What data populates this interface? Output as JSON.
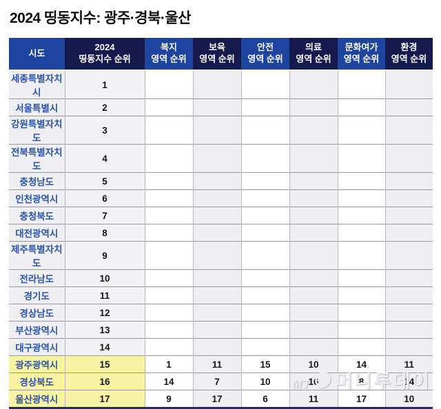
{
  "title": "2024 띵동지수: 광주·경북·울산",
  "colors": {
    "header_royal_blue": "#1d449e",
    "header_dark_navy": "#15194d",
    "region_label_text": "#2a55a8",
    "row_gray": "#efeef1",
    "highlight_yellow": "#f8f3a2",
    "bottom_border_navy": "#1c2a66"
  },
  "chart_data": {
    "type": "table",
    "title": "2024 띵동지수: 광주·경북·울산",
    "columns": [
      {
        "label": "시도",
        "style": "royal"
      },
      {
        "label": "2024\n띵동지수 순위",
        "style": "navy"
      },
      {
        "label": "복지\n영역 순위",
        "style": "royal"
      },
      {
        "label": "보육\n영역 순위",
        "style": "navy"
      },
      {
        "label": "안전\n영역 순위",
        "style": "royal"
      },
      {
        "label": "의료\n영역 순위",
        "style": "navy"
      },
      {
        "label": "문화여가\n영역 순위",
        "style": "royal"
      },
      {
        "label": "환경\n영역 순위",
        "style": "navy"
      }
    ],
    "rows": [
      {
        "cells": [
          "세종특별자치시",
          "1",
          "",
          "",
          "",
          "",
          "",
          ""
        ],
        "highlight": false
      },
      {
        "cells": [
          "서울특별시",
          "2",
          "",
          "",
          "",
          "",
          "",
          ""
        ],
        "highlight": false
      },
      {
        "cells": [
          "강원특별자치도",
          "3",
          "",
          "",
          "",
          "",
          "",
          ""
        ],
        "highlight": false
      },
      {
        "cells": [
          "전북특별자치도",
          "4",
          "",
          "",
          "",
          "",
          "",
          ""
        ],
        "highlight": false
      },
      {
        "cells": [
          "충청남도",
          "5",
          "",
          "",
          "",
          "",
          "",
          ""
        ],
        "highlight": false
      },
      {
        "cells": [
          "인천광역시",
          "6",
          "",
          "",
          "",
          "",
          "",
          ""
        ],
        "highlight": false
      },
      {
        "cells": [
          "충청북도",
          "7",
          "",
          "",
          "",
          "",
          "",
          ""
        ],
        "highlight": false
      },
      {
        "cells": [
          "대전광역시",
          "8",
          "",
          "",
          "",
          "",
          "",
          ""
        ],
        "highlight": false
      },
      {
        "cells": [
          "제주특별자치도",
          "9",
          "",
          "",
          "",
          "",
          "",
          ""
        ],
        "highlight": false
      },
      {
        "cells": [
          "전라남도",
          "10",
          "",
          "",
          "",
          "",
          "",
          ""
        ],
        "highlight": false
      },
      {
        "cells": [
          "경기도",
          "11",
          "",
          "",
          "",
          "",
          "",
          ""
        ],
        "highlight": false
      },
      {
        "cells": [
          "경상남도",
          "12",
          "",
          "",
          "",
          "",
          "",
          ""
        ],
        "highlight": false
      },
      {
        "cells": [
          "부산광역시",
          "13",
          "",
          "",
          "",
          "",
          "",
          ""
        ],
        "highlight": false
      },
      {
        "cells": [
          "대구광역시",
          "14",
          "",
          "",
          "",
          "",
          "",
          ""
        ],
        "highlight": false
      },
      {
        "cells": [
          "광주광역시",
          "15",
          "1",
          "11",
          "15",
          "10",
          "14",
          "11"
        ],
        "highlight": true
      },
      {
        "cells": [
          "경상북도",
          "16",
          "14",
          "7",
          "10",
          "16",
          "8",
          "14"
        ],
        "highlight": true
      },
      {
        "cells": [
          "울산광역시",
          "17",
          "9",
          "17",
          "6",
          "11",
          "17",
          "10"
        ],
        "highlight": true
      }
    ]
  },
  "watermark": {
    "mt": "MT",
    "name": "머니투데이"
  }
}
